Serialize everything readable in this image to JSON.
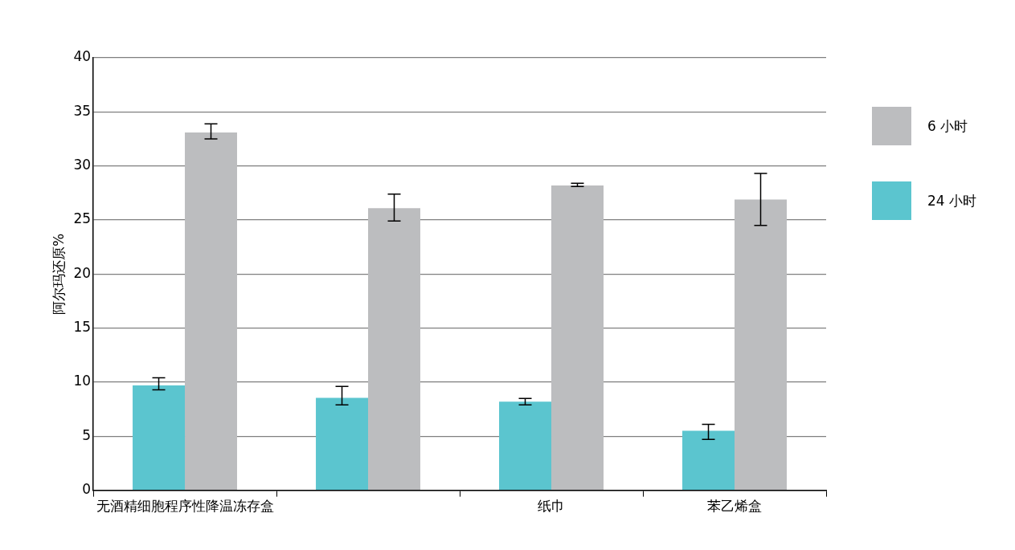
{
  "chart_data": {
    "type": "bar",
    "ylabel": "阿尔玛还原%",
    "categories": [
      "无酒精细胞程序性降温冻存盒",
      null,
      "纸巾",
      "苯乙烯盒"
    ],
    "series": [
      {
        "name": "24 小时",
        "color": "#5bc5cf",
        "values": [
          9.7,
          8.55,
          8.2,
          5.5
        ],
        "errors": [
          [
            9.3,
            10.4
          ],
          [
            7.9,
            9.6
          ],
          [
            7.9,
            8.5
          ],
          [
            4.7,
            6.1
          ]
        ]
      },
      {
        "name": "6 小时",
        "color": "#bcbdbf",
        "values": [
          33.1,
          26.1,
          28.2,
          26.9
        ],
        "errors": [
          [
            32.5,
            33.9
          ],
          [
            24.9,
            27.4
          ],
          [
            28.1,
            28.4
          ],
          [
            24.5,
            29.3
          ]
        ]
      }
    ],
    "ylim": [
      0,
      40
    ],
    "yticks": [
      0,
      5,
      10,
      15,
      20,
      25,
      30,
      35,
      40
    ],
    "grid": "y",
    "legend": "right"
  }
}
